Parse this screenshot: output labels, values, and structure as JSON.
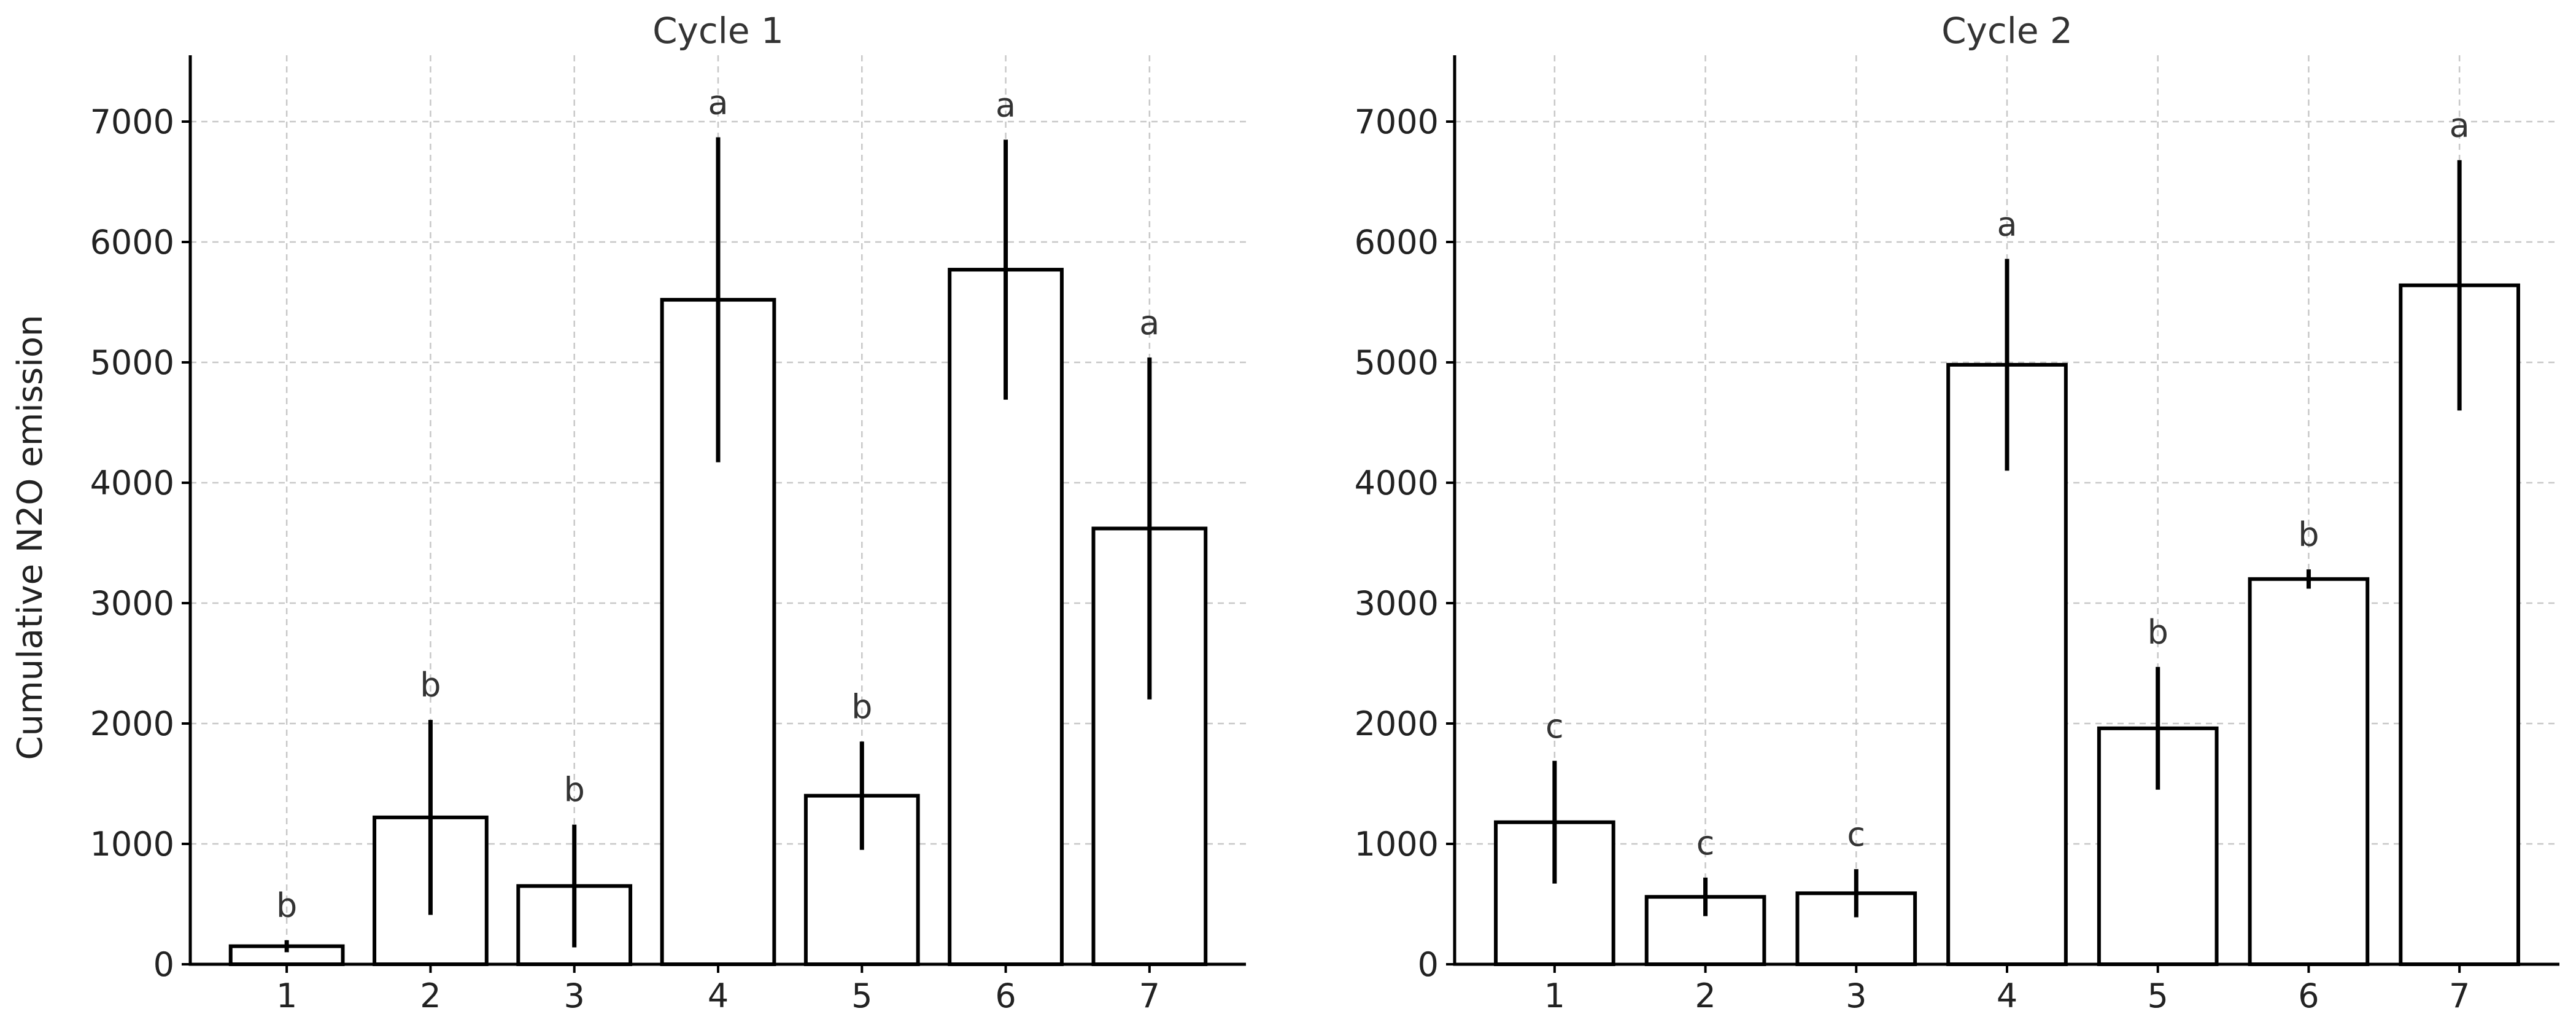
{
  "chart_data": [
    {
      "type": "bar",
      "title": "Cycle 1",
      "ylabel": "Cumulative N2O emission",
      "xlabel": "",
      "ylim": [
        0,
        7500
      ],
      "yticks": [
        0,
        1000,
        2000,
        3000,
        4000,
        5000,
        6000,
        7000
      ],
      "grid": true,
      "categories": [
        "1",
        "2",
        "3",
        "4",
        "5",
        "6",
        "7"
      ],
      "values": [
        150,
        1220,
        650,
        5520,
        1400,
        5770,
        3620
      ],
      "errors": [
        50,
        810,
        510,
        1350,
        450,
        1080,
        1420
      ],
      "significance": [
        "b",
        "b",
        "b",
        "a",
        "b",
        "a",
        "a"
      ]
    },
    {
      "type": "bar",
      "title": "Cycle 2",
      "ylabel": "",
      "xlabel": "",
      "ylim": [
        0,
        7500
      ],
      "yticks": [
        0,
        1000,
        2000,
        3000,
        4000,
        5000,
        6000,
        7000
      ],
      "grid": true,
      "categories": [
        "1",
        "2",
        "3",
        "4",
        "5",
        "6",
        "7"
      ],
      "values": [
        1180,
        560,
        590,
        4980,
        1960,
        3200,
        5640
      ],
      "errors": [
        510,
        160,
        200,
        880,
        510,
        80,
        1040
      ],
      "significance": [
        "c",
        "c",
        "c",
        "a",
        "b",
        "b",
        "a"
      ]
    }
  ]
}
